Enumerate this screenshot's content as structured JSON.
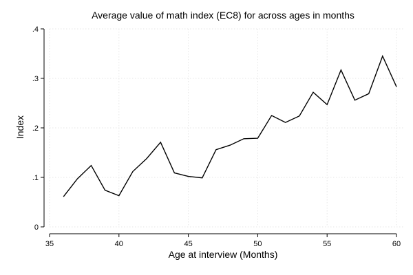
{
  "chart_data": {
    "type": "line",
    "title": "Average value of math index (EC8) for across ages in months",
    "xlabel": "Age at interview (Months)",
    "ylabel": "Index",
    "xlim": [
      35,
      60
    ],
    "ylim": [
      0,
      0.4
    ],
    "x_ticks": [
      35,
      40,
      45,
      50,
      55,
      60
    ],
    "x_tick_labels": [
      "35",
      "40",
      "45",
      "50",
      "55",
      "60"
    ],
    "y_ticks": [
      0,
      0.1,
      0.2,
      0.3,
      0.4
    ],
    "y_tick_labels": [
      "0",
      ".1",
      ".2",
      ".3",
      ".4"
    ],
    "grid": true,
    "series": [
      {
        "color": "#000000",
        "x": [
          36,
          37,
          38,
          39,
          40,
          41,
          42,
          43,
          44,
          45,
          46,
          47,
          48,
          49,
          50,
          51,
          52,
          53,
          54,
          55,
          56,
          57,
          58,
          59,
          60
        ],
        "y": [
          0.061,
          0.097,
          0.124,
          0.074,
          0.063,
          0.112,
          0.138,
          0.171,
          0.109,
          0.102,
          0.099,
          0.156,
          0.165,
          0.178,
          0.179,
          0.225,
          0.211,
          0.224,
          0.272,
          0.247,
          0.317,
          0.256,
          0.269,
          0.345,
          0.283
        ]
      }
    ]
  }
}
